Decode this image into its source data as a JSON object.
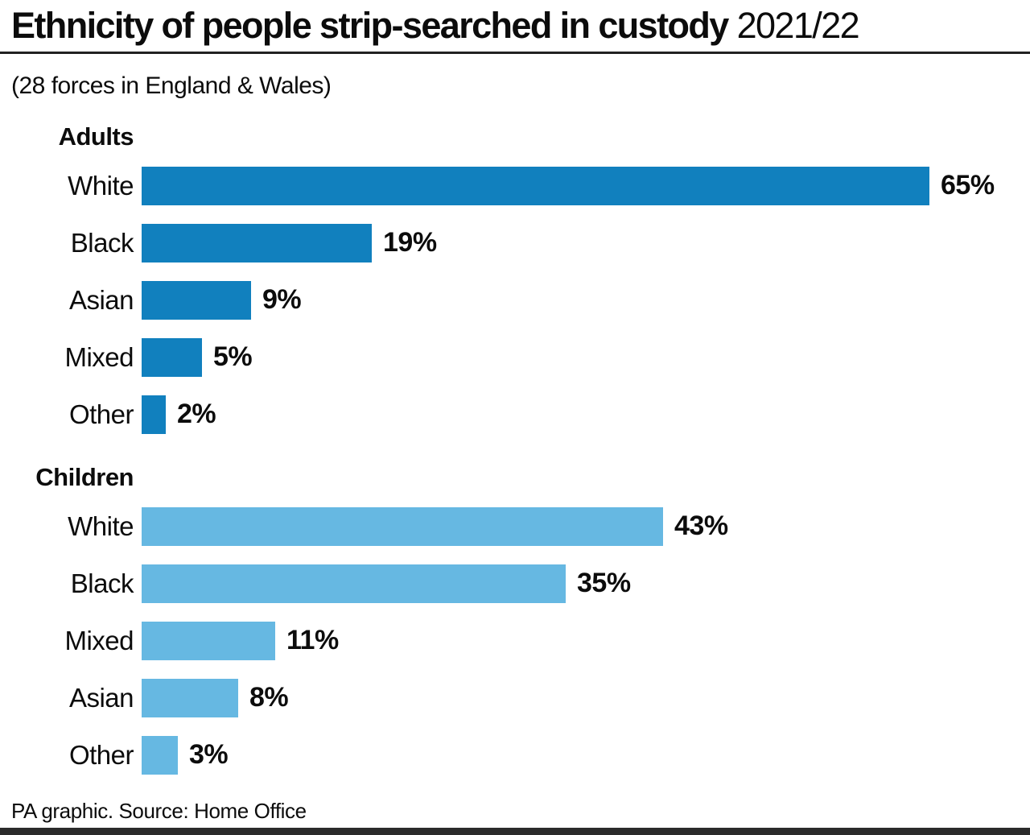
{
  "header": {
    "title_bold": "Ethnicity of people strip-searched in custody",
    "title_year": "2021/22",
    "subtitle": "(28 forces in England & Wales)"
  },
  "footer": {
    "credit": "PA graphic. Source: Home Office"
  },
  "colors": {
    "adults_bar": "#1180be",
    "children_bar": "#66b8e2",
    "title_rule": "#222222",
    "bottom_strip": "#2b2b2b",
    "text": "#0c0c0c"
  },
  "chart_data": {
    "type": "bar",
    "orientation": "horizontal",
    "title": "Ethnicity of people strip-searched in custody 2021/22",
    "subtitle": "(28 forces in England & Wales)",
    "unit": "%",
    "xlim": [
      0,
      65
    ],
    "grid": false,
    "legend": false,
    "value_labels": "end-of-bar",
    "groups": [
      {
        "label": "Adults",
        "color": "#1180be",
        "bars": [
          {
            "category": "White",
            "value": 65
          },
          {
            "category": "Black",
            "value": 19
          },
          {
            "category": "Asian",
            "value": 9
          },
          {
            "category": "Mixed",
            "value": 5
          },
          {
            "category": "Other",
            "value": 2
          }
        ]
      },
      {
        "label": "Children",
        "color": "#66b8e2",
        "bars": [
          {
            "category": "White",
            "value": 43
          },
          {
            "category": "Black",
            "value": 35
          },
          {
            "category": "Mixed",
            "value": 11
          },
          {
            "category": "Asian",
            "value": 8
          },
          {
            "category": "Other",
            "value": 3
          }
        ]
      }
    ]
  }
}
